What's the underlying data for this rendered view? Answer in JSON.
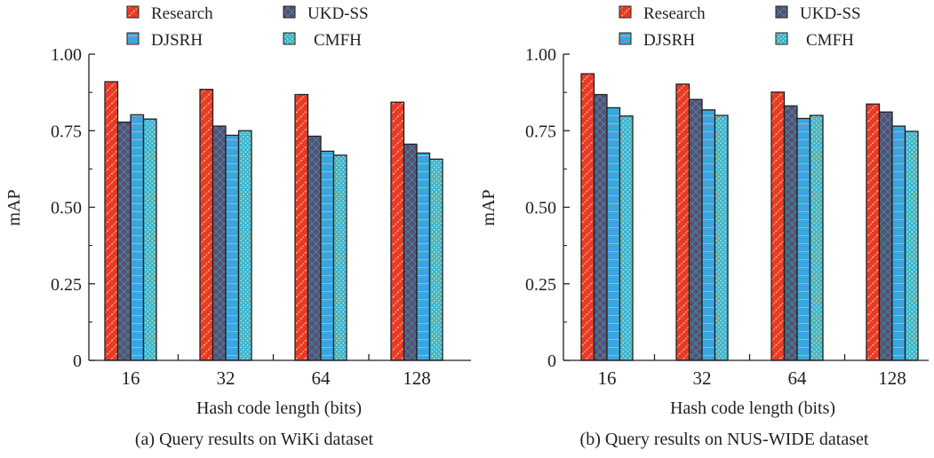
{
  "legend": {
    "research": "Research",
    "ukdss": "UKD-SS",
    "djsrh": "DJSRH",
    "cmfh": "CMFH"
  },
  "colors": {
    "research": "#e8392f",
    "ukdss": "#5b4a8a",
    "djsrh": "#3aa6dd",
    "cmfh": "#3eb6d2",
    "axis": "#231f20"
  },
  "chart_data": [
    {
      "type": "bar",
      "caption": "(a) Query results on WiKi dataset",
      "xlabel": "Hash code length (bits)",
      "ylabel": "mAP",
      "ylim": [
        0,
        1.0
      ],
      "yticks": [
        "0",
        "0.25",
        "0.50",
        "0.75",
        "1.00"
      ],
      "categories": [
        "16",
        "32",
        "64",
        "128"
      ],
      "series": [
        {
          "name": "Research",
          "values": [
            0.91,
            0.885,
            0.868,
            0.843
          ]
        },
        {
          "name": "UKD-SS",
          "values": [
            0.778,
            0.765,
            0.732,
            0.706
          ]
        },
        {
          "name": "DJSRH",
          "values": [
            0.802,
            0.735,
            0.683,
            0.677
          ]
        },
        {
          "name": "CMFH",
          "values": [
            0.788,
            0.75,
            0.67,
            0.657
          ]
        }
      ],
      "legend_position": "top"
    },
    {
      "type": "bar",
      "caption": "(b) Query results on NUS-WIDE dataset",
      "xlabel": "Hash code length (bits)",
      "ylabel": "mAP",
      "ylim": [
        0,
        1.0
      ],
      "yticks": [
        "0",
        "0.25",
        "0.50",
        "0.75",
        "1.00"
      ],
      "categories": [
        "16",
        "32",
        "64",
        "128"
      ],
      "series": [
        {
          "name": "Research",
          "values": [
            0.936,
            0.902,
            0.876,
            0.837
          ]
        },
        {
          "name": "UKD-SS",
          "values": [
            0.868,
            0.852,
            0.831,
            0.811
          ]
        },
        {
          "name": "DJSRH",
          "values": [
            0.825,
            0.818,
            0.79,
            0.765
          ]
        },
        {
          "name": "CMFH",
          "values": [
            0.798,
            0.8,
            0.8,
            0.748
          ]
        }
      ],
      "legend_position": "top"
    }
  ]
}
